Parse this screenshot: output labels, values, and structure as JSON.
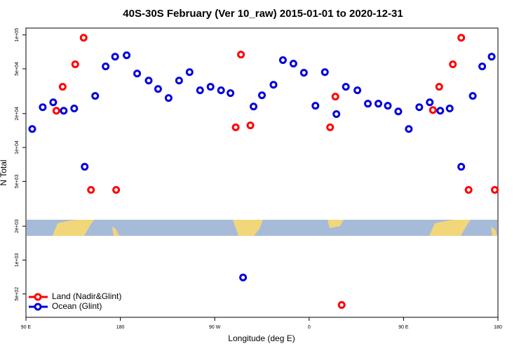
{
  "chart_data": {
    "type": "scatter",
    "title": "40S-30S February (Ver 10_raw)   2015-01-01 to 2020-12-31",
    "x_label": "Longitude (deg E)",
    "y_label": "N Total",
    "yscale": "log",
    "legend": "lower left",
    "xlim": [
      90,
      540
    ],
    "ylim": [
      310,
      115000
    ],
    "xticks": [
      {
        "value": 90,
        "label": "90 E"
      },
      180,
      {
        "value": 270,
        "label": "90 W"
      },
      {
        "value": 360,
        "label": "0"
      },
      {
        "value": 450,
        "label": "90 E"
      },
      {
        "value": 540,
        "label": "180"
      }
    ],
    "yticks": [
      {
        "value": 500,
        "label": "5e+02"
      },
      {
        "value": 1000,
        "label": "1e+03"
      },
      {
        "value": 2000,
        "label": "2e+03"
      },
      {
        "value": 5000,
        "label": "5e+03"
      },
      {
        "value": 10000,
        "label": "1e+04"
      },
      {
        "value": 20000,
        "label": "2e+04"
      },
      {
        "value": 50000,
        "label": "5e+04"
      },
      {
        "value": 100000,
        "label": "1e+05"
      }
    ],
    "series": [
      {
        "name": "Land (Nadir&Glint)",
        "color": "#ff0000",
        "x": [
          119,
          125,
          137,
          145,
          152,
          176,
          290,
          295,
          304,
          380,
          385,
          391,
          478,
          484,
          497,
          505,
          512,
          537
        ],
        "values": [
          21200,
          34600,
          54800,
          94400,
          4200,
          4200,
          15100,
          66900,
          15700,
          15100,
          28300,
          399,
          21500,
          34600,
          54800,
          94400,
          4200,
          4200
        ]
      },
      {
        "name": "Ocean (Glint)",
        "color": "#0000dd",
        "x": [
          96,
          106,
          116,
          126,
          136,
          146,
          156,
          166,
          175,
          186,
          196,
          207,
          216,
          226,
          236,
          246,
          256,
          266,
          276,
          285,
          297,
          307,
          315,
          326,
          335,
          345,
          355,
          366,
          375,
          386,
          395,
          406,
          416,
          426,
          435,
          445,
          455,
          465,
          475,
          485,
          494,
          505,
          516,
          525,
          534
        ],
        "values": [
          14600,
          22800,
          25200,
          21200,
          22200,
          6740,
          28700,
          52500,
          64100,
          65900,
          45400,
          39300,
          33100,
          27500,
          39300,
          46700,
          32200,
          34600,
          32200,
          30400,
          700,
          23100,
          29100,
          36100,
          59700,
          55600,
          46100,
          23500,
          46700,
          19800,
          34600,
          32200,
          24500,
          24500,
          23500,
          20900,
          14600,
          22800,
          25200,
          21200,
          22200,
          6740,
          28700,
          52500,
          64100
        ]
      }
    ]
  }
}
